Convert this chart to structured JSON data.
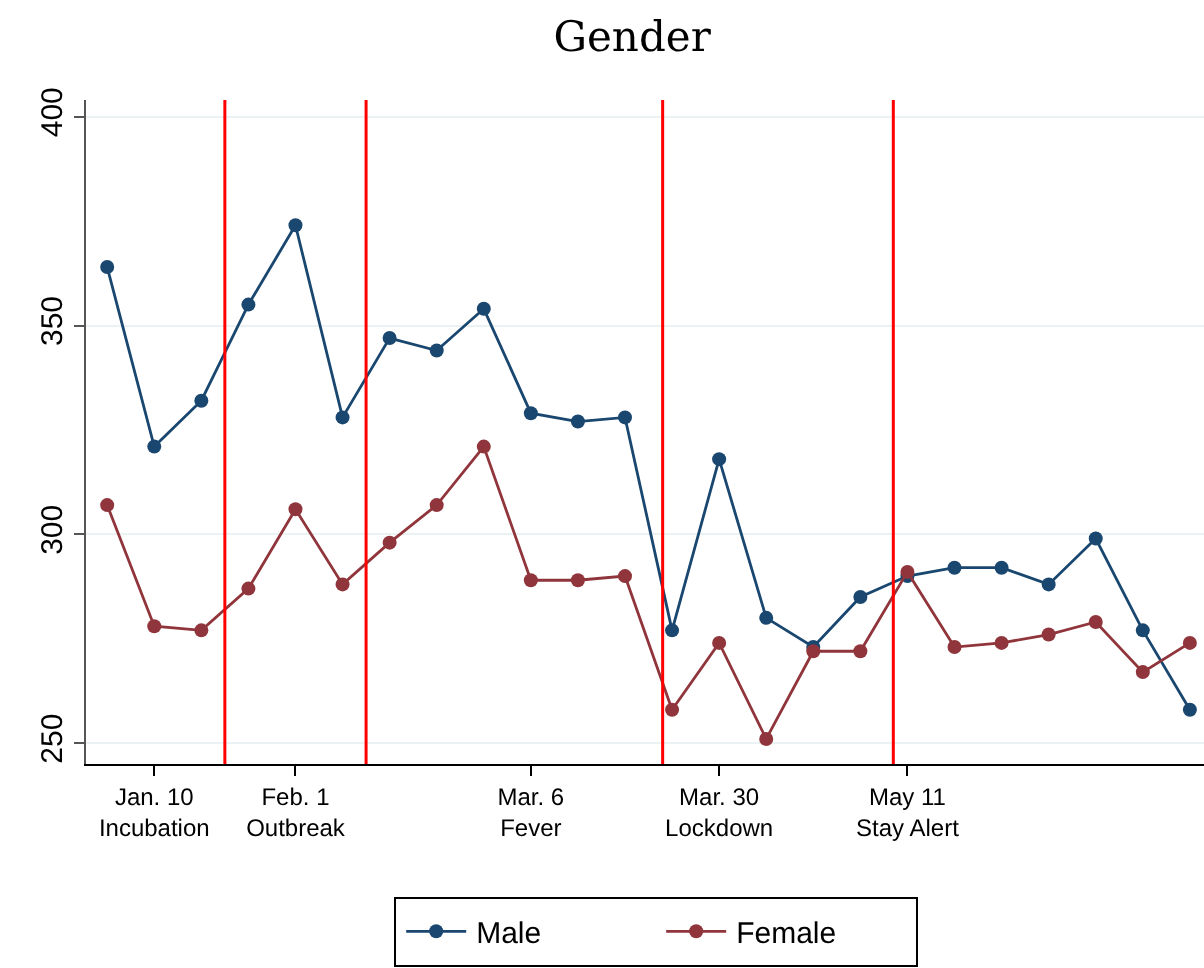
{
  "chart_data": {
    "type": "line",
    "title": "Gender",
    "categories": [
      null,
      "Jan. 10\nIncubation",
      null,
      null,
      "Feb. 1\nOutbreak",
      null,
      null,
      null,
      null,
      "Mar. 6\nFever",
      null,
      null,
      null,
      "Mar. 30\nLockdown",
      null,
      null,
      null,
      "May 11\nStay Alert",
      null,
      null,
      null,
      null,
      null,
      null
    ],
    "series": [
      {
        "name": "Male",
        "color": "#1a476f",
        "values": [
          364,
          321,
          332,
          355,
          374,
          328,
          347,
          344,
          354,
          329,
          327,
          328,
          277,
          318,
          280,
          273,
          285,
          290,
          292,
          292,
          288,
          299,
          277,
          258
        ]
      },
      {
        "name": "Female",
        "color": "#90353b",
        "values": [
          307,
          278,
          277,
          287,
          306,
          288,
          298,
          307,
          321,
          289,
          289,
          290,
          258,
          274,
          251,
          272,
          272,
          291,
          273,
          274,
          276,
          279,
          267,
          274
        ]
      }
    ],
    "ylim": [
      245,
      404
    ],
    "yticks": [
      250,
      300,
      350,
      400
    ],
    "grid": "y",
    "legend": "bottom",
    "marker": "circle",
    "line_style": "solid"
  }
}
